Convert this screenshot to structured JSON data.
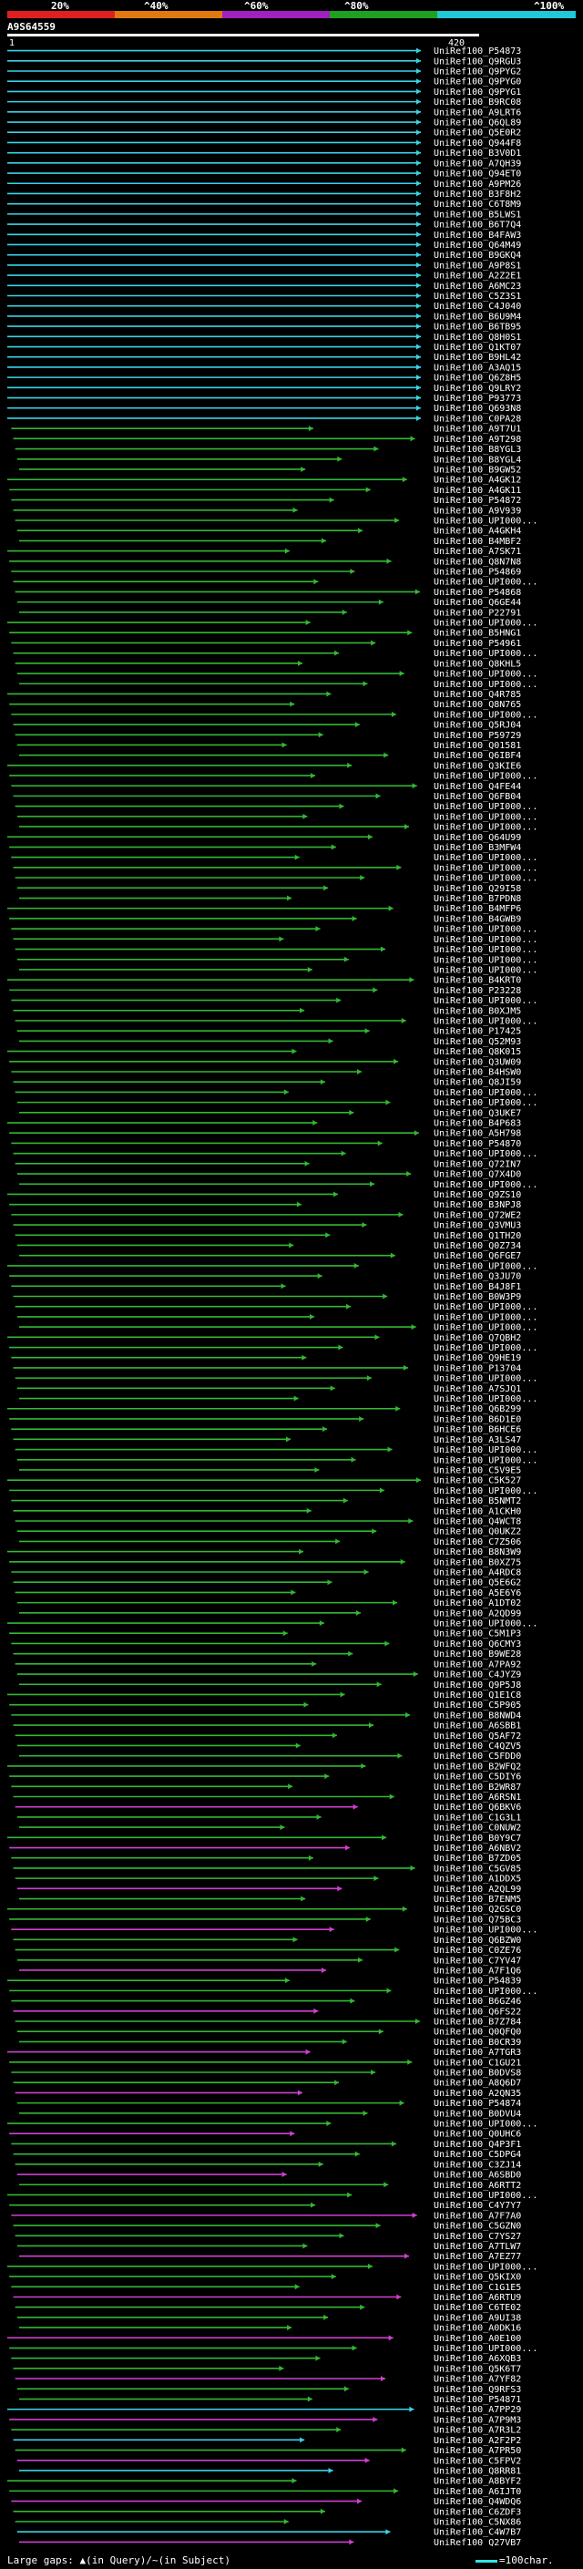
{
  "query": {
    "id": "A9S64559",
    "start": "1",
    "end": "420"
  },
  "scale": {
    "labels": [
      "20%",
      "^40%",
      "^60%",
      "^80%",
      "^100%"
    ],
    "colors": [
      "#e02020",
      "#e07a10",
      "#a020c0",
      "#20a020",
      "#20c8d8"
    ]
  },
  "colors": {
    "cyan": "#39d4e6",
    "green": "#33b833",
    "magenta": "#d040d0"
  },
  "chart_data": {
    "type": "alignment",
    "title": "A9S64559",
    "x_range": [
      1,
      420
    ],
    "hits": []
  },
  "footer": {
    "left": "Large gaps: ▲(in Query)/~(in Subject)",
    "right": "=100char."
  },
  "hit_list": [
    "UniRef100_P54873",
    "UniRef100_Q9RGU3",
    "UniRef100_Q9PYG2",
    "UniRef100_Q9PYG0",
    "UniRef100_Q9PYG1",
    "UniRef100_B9RC08",
    "UniRef100_A9LRT6",
    "UniRef100_Q6QL89",
    "UniRef100_Q5E0R2",
    "UniRef100_Q944F8",
    "UniRef100_B3V0D1",
    "UniRef100_A7QH39",
    "UniRef100_Q94ET0",
    "UniRef100_A9PM26",
    "UniRef100_B3F8H2",
    "UniRef100_C6T8M9",
    "UniRef100_B5LWS1",
    "UniRef100_B6T7Q4",
    "UniRef100_B4FAW3",
    "UniRef100_Q64M49",
    "UniRef100_B9GKQ4",
    "UniRef100_A9P8S1",
    "UniRef100_A2Z2E1",
    "UniRef100_A6MC23",
    "UniRef100_C5Z3S1",
    "UniRef100_C4J040",
    "UniRef100_B6U9M4",
    "UniRef100_B6TB95",
    "UniRef100_Q8H0S1",
    "UniRef100_Q1KT07",
    "UniRef100_B9HL42",
    "UniRef100_A3AQ15",
    "UniRef100_Q6Z8H5",
    "UniRef100_Q9LRY2",
    "UniRef100_P93773",
    "UniRef100_Q693N8",
    "UniRef100_C0PA28",
    "UniRef100_A9T7U1",
    "UniRef100_A9T298",
    "UniRef100_B8YGL3",
    "UniRef100_B8YGL4",
    "UniRef100_B9GW52",
    "UniRef100_A4GK12",
    "UniRef100_A4GK11",
    "UniRef100_P54872",
    "UniRef100_A9V939",
    "UniRef100_UPI000...",
    "UniRef100_A4GKH4",
    "UniRef100_B4MBF2",
    "UniRef100_A7SK71",
    "UniRef100_Q8N7N8",
    "UniRef100_P54869",
    "UniRef100_UPI000...",
    "UniRef100_P54868",
    "UniRef100_Q6GE44",
    "UniRef100_P22791",
    "UniRef100_UPI000...",
    "UniRef100_B5HNG1",
    "UniRef100_P54961",
    "UniRef100_UPI000...",
    "UniRef100_Q8KHL5",
    "UniRef100_UPI000...",
    "UniRef100_UPI000...",
    "UniRef100_Q4R785",
    "UniRef100_Q8N765",
    "UniRef100_UPI000...",
    "UniRef100_Q5RJ04",
    "UniRef100_P59729",
    "UniRef100_Q01581",
    "UniRef100_Q6IBF4",
    "UniRef100_Q3KIE6",
    "UniRef100_UPI000...",
    "UniRef100_Q4FE44",
    "UniRef100_Q6FB04",
    "UniRef100_UPI000...",
    "UniRef100_UPI000...",
    "UniRef100_UPI000...",
    "UniRef100_Q64U99",
    "UniRef100_B3MFW4",
    "UniRef100_UPI000...",
    "UniRef100_UPI000...",
    "UniRef100_UPI000...",
    "UniRef100_Q29I58",
    "UniRef100_B7PDN8",
    "UniRef100_B4MFP6",
    "UniRef100_B4GWB9",
    "UniRef100_UPI000...",
    "UniRef100_UPI000...",
    "UniRef100_UPI000...",
    "UniRef100_UPI000...",
    "UniRef100_UPI000...",
    "UniRef100_B4KRT0",
    "UniRef100_P23228",
    "UniRef100_UPI000...",
    "UniRef100_B0XJM5",
    "UniRef100_UPI000...",
    "UniRef100_P17425",
    "UniRef100_Q52M93",
    "UniRef100_Q8K015",
    "UniRef100_Q3UW09",
    "UniRef100_B4HSW0",
    "UniRef100_Q8JI59",
    "UniRef100_UPI000...",
    "UniRef100_UPI000...",
    "UniRef100_Q3UKE7",
    "UniRef100_B4P683",
    "UniRef100_A5H798",
    "UniRef100_P54870",
    "UniRef100_UPI000...",
    "UniRef100_Q72IN7",
    "UniRef100_Q7X4D0",
    "UniRef100_UPI000...",
    "UniRef100_Q9ZS10",
    "UniRef100_B3NPJ8",
    "UniRef100_Q72WE2",
    "UniRef100_Q3VMU3",
    "UniRef100_Q1TH20",
    "UniRef100_Q0Z734",
    "UniRef100_Q6FGE7",
    "UniRef100_UPI000...",
    "UniRef100_Q3JU70",
    "UniRef100_B4J8F1",
    "UniRef100_B0W3P9",
    "UniRef100_UPI000...",
    "UniRef100_UPI000...",
    "UniRef100_UPI000...",
    "UniRef100_Q7QBH2",
    "UniRef100_UPI000...",
    "UniRef100_Q9HE19",
    "UniRef100_P13704",
    "UniRef100_UPI000...",
    "UniRef100_A7SJQ1",
    "UniRef100_UPI000...",
    "UniRef100_Q6B299",
    "UniRef100_B6D1E0",
    "UniRef100_B6HCE6",
    "UniRef100_A3LS47",
    "UniRef100_UPI000...",
    "UniRef100_UPI000...",
    "UniRef100_C5V9E5",
    "UniRef100_C5K527",
    "UniRef100_UPI000...",
    "UniRef100_B5NMT2",
    "UniRef100_A1CKH0",
    "UniRef100_Q4WCT8",
    "UniRef100_Q0UKZ2",
    "UniRef100_C7Z506",
    "UniRef100_B8N3W9",
    "UniRef100_B0XZ75",
    "UniRef100_A4RDC8",
    "UniRef100_Q5E6G2",
    "UniRef100_A5E6Y6",
    "UniRef100_A1DT02",
    "UniRef100_A2QD99",
    "UniRef100_UPI000...",
    "UniRef100_C5M1P3",
    "UniRef100_Q6CMY3",
    "UniRef100_B9WE28",
    "UniRef100_A7PA92",
    "UniRef100_C4JYZ9",
    "UniRef100_Q9P5J8",
    "UniRef100_Q1E1C8",
    "UniRef100_C5P905",
    "UniRef100_B8NWD4",
    "UniRef100_A6SBB1",
    "UniRef100_Q5AF72",
    "UniRef100_C4QZV5",
    "UniRef100_C5FDD0",
    "UniRef100_B2WFQ2",
    "UniRef100_C5DIY6",
    "UniRef100_B2WR87",
    "UniRef100_A6RSN1",
    "UniRef100_Q6BKV6",
    "UniRef100_C1G3L1",
    "UniRef100_C0NUW2",
    "UniRef100_B0Y9C7",
    "UniRef100_A6NBV2",
    "UniRef100_B7ZD05",
    "UniRef100_C5GV85",
    "UniRef100_A1DDX5",
    "UniRef100_A2QL99",
    "UniRef100_B7ENM5",
    "UniRef100_Q2GSC0",
    "UniRef100_Q75BC3",
    "UniRef100_UPI000...",
    "UniRef100_Q6BZW0",
    "UniRef100_C0ZE76",
    "UniRef100_C7YV47",
    "UniRef100_A7F1Q6",
    "UniRef100_P54839",
    "UniRef100_UPI000...",
    "UniRef100_B6GZ46",
    "UniRef100_Q6FS22",
    "UniRef100_B7Z784",
    "UniRef100_Q0QFQ0",
    "UniRef100_B0CR39",
    "UniRef100_A7TGR3",
    "UniRef100_C1GU21",
    "UniRef100_B0DVS8",
    "UniRef100_A8Q6D7",
    "UniRef100_A2QN35",
    "UniRef100_P54874",
    "UniRef100_B0DVU4",
    "UniRef100_UPI000...",
    "UniRef100_Q0UHC6",
    "UniRef100_Q4P3F1",
    "UniRef100_C5DPG4",
    "UniRef100_C3ZJ14",
    "UniRef100_A6SBD0",
    "UniRef100_A6RTT2",
    "UniRef100_UPI000...",
    "UniRef100_C4Y7Y7",
    "UniRef100_A7F7A0",
    "UniRef100_C5GZN0",
    "UniRef100_C7YS27",
    "UniRef100_A7TLW7",
    "UniRef100_A7EZ77",
    "UniRef100_UPI000...",
    "UniRef100_Q5KIX0",
    "UniRef100_C1G1E5",
    "UniRef100_A6RTU9",
    "UniRef100_C6TE02",
    "UniRef100_A9UI38",
    "UniRef100_A0DK16",
    "UniRef100_A0E100",
    "UniRef100_UPI000...",
    "UniRef100_A6XQB3",
    "UniRef100_Q5K6T7",
    "UniRef100_A7YF82",
    "UniRef100_Q9RFS3",
    "UniRef100_P54871",
    "UniRef100_A7PP29",
    "UniRef100_A7P9M3",
    "UniRef100_A7R3L2",
    "UniRef100_A2F2P2",
    "UniRef100_A7PR50",
    "UniRef100_C5FPV2",
    "UniRef100_Q8RR81",
    "UniRef100_A8BYF2",
    "UniRef100_A6IJT0",
    "UniRef100_Q4WDQ6",
    "UniRef100_C6ZDF3",
    "UniRef100_C5NX86",
    "UniRef100_C4W7B7",
    "UniRef100_Q27VB7"
  ]
}
